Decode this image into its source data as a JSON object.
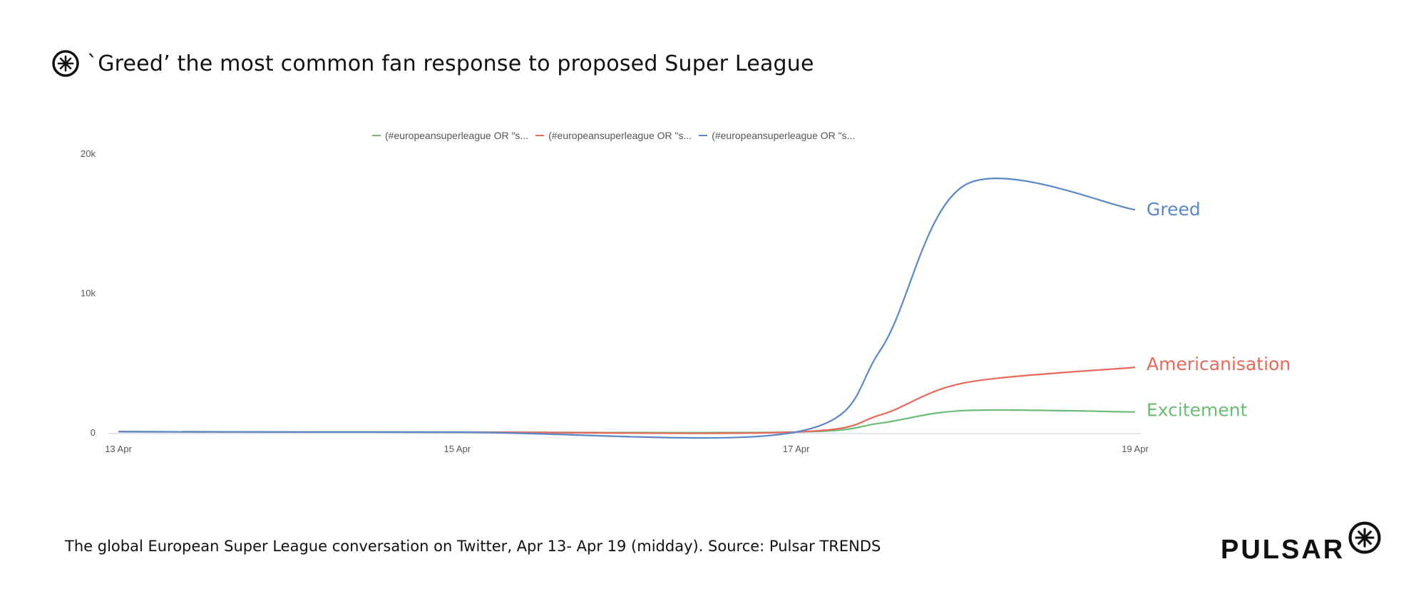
{
  "title": "`Greed’ the most common fan response to proposed Super League",
  "caption": "The  global European Super League conversation on Twitter, Apr 13- Apr 19 (midday). Source: Pulsar TRENDS",
  "brand": "PULSAR",
  "icons": {
    "title_logo": "pulsar-logo-icon",
    "brand_logo": "pulsar-logo-icon"
  },
  "colors": {
    "greed": "#5b87c7",
    "americanisation": "#e8685a",
    "excitement": "#6dbb78",
    "axis_text": "#555555",
    "baseline": "#ccd6eb"
  },
  "legend": [
    {
      "label": "(#europeansuperleague OR \"s...",
      "color": "#6dbb78"
    },
    {
      "label": "(#europeansuperleague OR \"s...",
      "color": "#e8685a"
    },
    {
      "label": "(#europeansuperleague OR \"s...",
      "color": "#5b87c7"
    }
  ],
  "chart_data": {
    "type": "line",
    "x_domain": [
      "13 Apr",
      "19 Apr"
    ],
    "x_ticks": [
      "13 Apr",
      "15 Apr",
      "17 Apr",
      "19 Apr"
    ],
    "y_ticks": [
      "0",
      "10k",
      "20k"
    ],
    "ylim": [
      0,
      20000
    ],
    "grid": false,
    "legend_position": "top-center",
    "series": [
      {
        "name": "Excitement",
        "color": "#6dbb78",
        "points": [
          {
            "x": "13 Apr",
            "y": 80
          },
          {
            "x": "15 Apr",
            "y": 50
          },
          {
            "x": "17 Apr",
            "y": 60
          },
          {
            "x": "17 Apr 12:00",
            "y": 700
          },
          {
            "x": "18 Apr",
            "y": 1600
          },
          {
            "x": "19 Apr",
            "y": 1500
          }
        ]
      },
      {
        "name": "Americanisation",
        "color": "#e8685a",
        "points": [
          {
            "x": "13 Apr",
            "y": 80
          },
          {
            "x": "15 Apr",
            "y": 50
          },
          {
            "x": "17 Apr",
            "y": 60
          },
          {
            "x": "17 Apr 12:00",
            "y": 1300
          },
          {
            "x": "18 Apr",
            "y": 3600
          },
          {
            "x": "19 Apr",
            "y": 4700
          }
        ]
      },
      {
        "name": "Greed",
        "color": "#5b87c7",
        "points": [
          {
            "x": "13 Apr",
            "y": 80
          },
          {
            "x": "15 Apr",
            "y": 50
          },
          {
            "x": "17 Apr",
            "y": 60
          },
          {
            "x": "17 Apr 12:00",
            "y": 6000
          },
          {
            "x": "18 Apr",
            "y": 17800
          },
          {
            "x": "19 Apr",
            "y": 16000
          }
        ]
      }
    ]
  }
}
